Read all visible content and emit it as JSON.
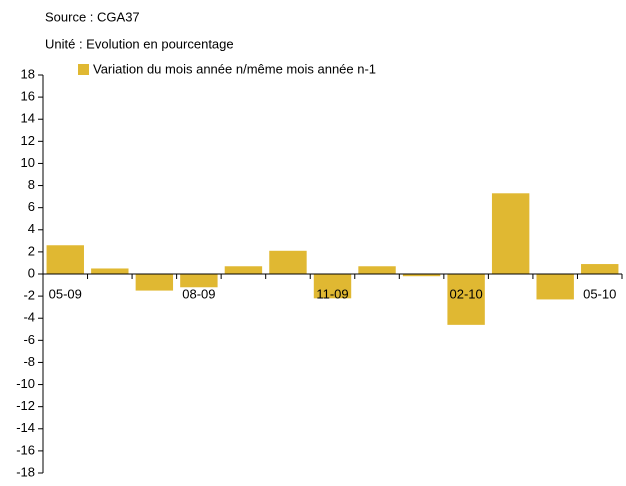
{
  "chart_data": {
    "type": "bar",
    "source": "Source : CGA37",
    "unit": "Unité : Evolution en pourcentage",
    "categories": [
      "05-09",
      null,
      null,
      "08-09",
      null,
      null,
      "11-09",
      null,
      null,
      "02-10",
      null,
      null,
      "05-10"
    ],
    "series": [
      {
        "name": "Variation du mois année n/même mois année n-1",
        "color": "#e0b832",
        "values": [
          2.6,
          0.5,
          -1.5,
          -1.2,
          0.7,
          2.1,
          -2.2,
          0.7,
          -0.2,
          -4.6,
          7.3,
          -2.3,
          0.9
        ]
      }
    ],
    "ylim": [
      -18,
      18
    ],
    "yticks": [
      -18,
      -16,
      -14,
      -12,
      -10,
      -8,
      -6,
      -4,
      -2,
      0,
      2,
      4,
      6,
      8,
      10,
      12,
      14,
      16,
      18
    ],
    "grid": false
  }
}
